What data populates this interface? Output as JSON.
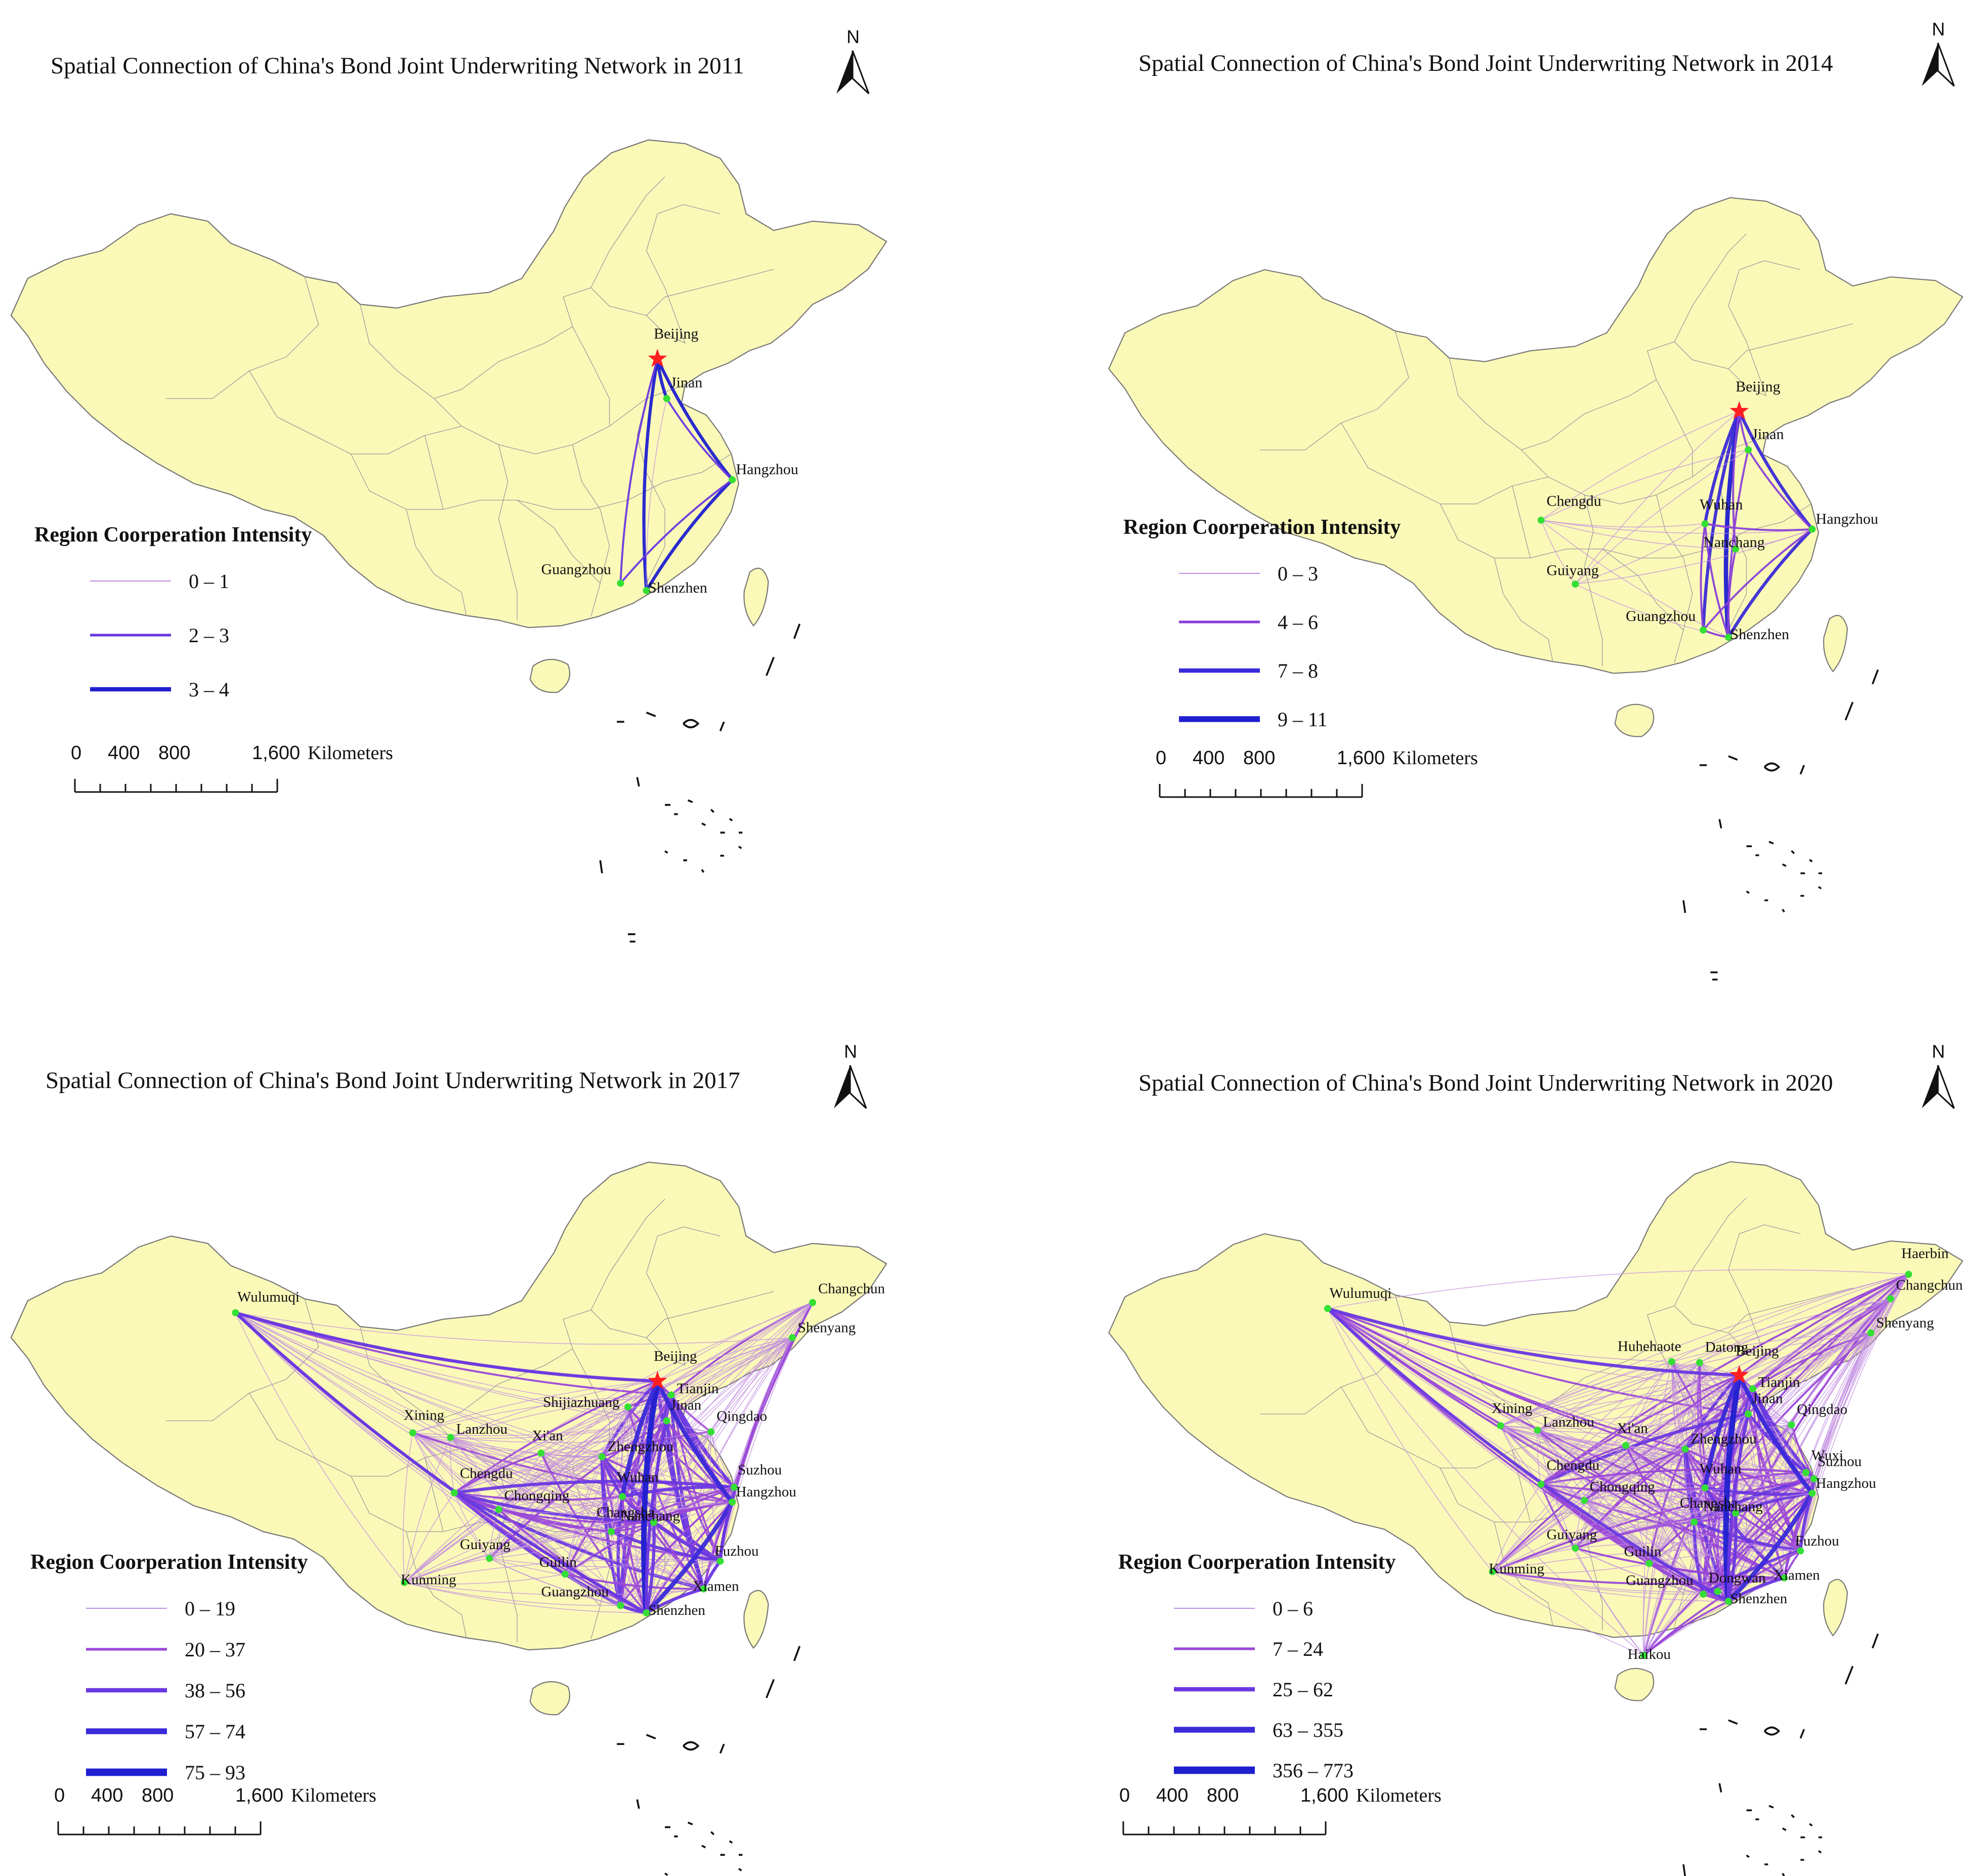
{
  "colors": {
    "land_fill": "#fbf9b8",
    "land_stroke": "#777777",
    "province_stroke": "#9a9a9a",
    "city_dot": "#33e033",
    "capital_star": "#ff1f1f",
    "background": "#ffffff"
  },
  "panels": [
    {
      "title": "Spatial Connection of  China's Bond Joint Underwriting Network in 2011",
      "north": "N",
      "legend_title": "Region Coorperation Intensity",
      "legend": [
        {
          "label": "0  –  1",
          "color": "#c08ce0",
          "weight": 1
        },
        {
          "label": "2  –  3",
          "color": "#6a38e0",
          "weight": 2
        },
        {
          "label": "3  –  4",
          "color": "#1f1fd0",
          "weight": 3
        }
      ],
      "scale": {
        "labels": [
          "0",
          "400",
          "800",
          "1,600"
        ],
        "unit": "Kilometers"
      },
      "cities": [
        "Beijing",
        "Jinan",
        "Hangzhou",
        "Guangzhou",
        "Shenzhen"
      ],
      "links": [
        [
          "Beijing",
          "Jinan",
          3
        ],
        [
          "Beijing",
          "Hangzhou",
          3
        ],
        [
          "Beijing",
          "Shenzhen",
          3
        ],
        [
          "Beijing",
          "Guangzhou",
          2
        ],
        [
          "Hangzhou",
          "Shenzhen",
          3
        ],
        [
          "Jinan",
          "Hangzhou",
          2
        ],
        [
          "Hangzhou",
          "Guangzhou",
          2
        ],
        [
          "Jinan",
          "Shenzhen",
          1
        ]
      ]
    },
    {
      "title": "Spatial Connection of  China's Bond Joint Underwriting Network in 2014",
      "north": "N",
      "legend_title": "Region Coorperation Intensity",
      "legend": [
        {
          "label": "0  –  3",
          "color": "#c08ce0",
          "weight": 1
        },
        {
          "label": "4  –  6",
          "color": "#8a40d8",
          "weight": 2
        },
        {
          "label": "7  –  8",
          "color": "#3a2ad8",
          "weight": 3
        },
        {
          "label": "9  –  11",
          "color": "#1f1fd0",
          "weight": 4
        }
      ],
      "scale": {
        "labels": [
          "0",
          "400",
          "800",
          "1,600"
        ],
        "unit": "Kilometers"
      },
      "cities": [
        "Beijing",
        "Jinan",
        "Chengdu",
        "Wuhan",
        "Hangzhou",
        "Nanchang",
        "Guiyang",
        "Guangzhou",
        "Shenzhen"
      ],
      "links": [
        [
          "Beijing",
          "Shenzhen",
          4
        ],
        [
          "Beijing",
          "Hangzhou",
          3
        ],
        [
          "Beijing",
          "Wuhan",
          3
        ],
        [
          "Beijing",
          "Guangzhou",
          3
        ],
        [
          "Beijing",
          "Jinan",
          2
        ],
        [
          "Beijing",
          "Chengdu",
          1
        ],
        [
          "Beijing",
          "Nanchang",
          2
        ],
        [
          "Beijing",
          "Guiyang",
          1
        ],
        [
          "Jinan",
          "Hangzhou",
          2
        ],
        [
          "Jinan",
          "Shenzhen",
          2
        ],
        [
          "Jinan",
          "Chengdu",
          1
        ],
        [
          "Jinan",
          "Guiyang",
          1
        ],
        [
          "Chengdu",
          "Wuhan",
          1
        ],
        [
          "Chengdu",
          "Hangzhou",
          1
        ],
        [
          "Chengdu",
          "Shenzhen",
          1
        ],
        [
          "Chengdu",
          "Guiyang",
          1
        ],
        [
          "Chengdu",
          "Nanchang",
          1
        ],
        [
          "Wuhan",
          "Hangzhou",
          2
        ],
        [
          "Wuhan",
          "Shenzhen",
          2
        ],
        [
          "Wuhan",
          "Guangzhou",
          2
        ],
        [
          "Hangzhou",
          "Shenzhen",
          3
        ],
        [
          "Hangzhou",
          "Guangzhou",
          2
        ],
        [
          "Nanchang",
          "Shenzhen",
          2
        ],
        [
          "Guiyang",
          "Shenzhen",
          1
        ],
        [
          "Guiyang",
          "Wuhan",
          1
        ],
        [
          "Guiyang",
          "Hangzhou",
          1
        ],
        [
          "Nanchang",
          "Hangzhou",
          1
        ],
        [
          "Guangzhou",
          "Shenzhen",
          2
        ]
      ]
    },
    {
      "title": "Spatial Connection of  China's Bond Joint Underwriting Network in 2017",
      "north": "N",
      "legend_title": "Region Coorperation Intensity",
      "legend": [
        {
          "label": "0  –  19",
          "color": "#c08ce0",
          "weight": 1
        },
        {
          "label": "20  –  37",
          "color": "#9a48d8",
          "weight": 2
        },
        {
          "label": "38  –  56",
          "color": "#6a38e0",
          "weight": 3
        },
        {
          "label": "57  –  74",
          "color": "#3a2ad8",
          "weight": 4
        },
        {
          "label": "75  –  93",
          "color": "#1f1fd0",
          "weight": 5
        }
      ],
      "scale": {
        "labels": [
          "0",
          "400",
          "800",
          "1,600"
        ],
        "unit": "Kilometers"
      },
      "cities": [
        "Wulumuqi",
        "Changchun",
        "Shenyang",
        "Beijing",
        "Tianjin",
        "Shijiazhuang",
        "Xining",
        "Lanzhou",
        "Xi'an",
        "Jinan",
        "Qingdao",
        "Zhengzhou",
        "Suzhou",
        "Chengdu",
        "Chongqing",
        "Wuhan",
        "Hangzhou",
        "Changsha",
        "Guiyang",
        "Nanchang",
        "Fuzhou",
        "Kunming",
        "Guilin",
        "Xiamen",
        "Guangzhou",
        "Shenzhen"
      ],
      "links": "dense"
    },
    {
      "title": "Spatial Connection of  China's Bond Joint Underwriting Network in 2020",
      "north": "N",
      "legend_title": "Region Coorperation Intensity",
      "legend": [
        {
          "label": "0  –  6",
          "color": "#c08ce0",
          "weight": 1
        },
        {
          "label": "7  –  24",
          "color": "#9a48d8",
          "weight": 2
        },
        {
          "label": "25  –  62",
          "color": "#6a38e0",
          "weight": 3
        },
        {
          "label": "63  –  355",
          "color": "#3a2ad8",
          "weight": 4
        },
        {
          "label": "356  –  773",
          "color": "#1f1fd0",
          "weight": 5
        }
      ],
      "scale": {
        "labels": [
          "0",
          "400",
          "800",
          "1,600"
        ],
        "unit": "Kilometers"
      },
      "cities": [
        "Haerbin",
        "Changchun",
        "Shenyang",
        "Wulumuqi",
        "Huhehaote",
        "Datong",
        "Beijing",
        "Tianjin",
        "Xining",
        "Jinan",
        "Qingdao",
        "Lanzhou",
        "Xi'an",
        "Zhengzhou",
        "Wuxi",
        "Suzhou",
        "Chengdu",
        "Wuhan",
        "Hangzhou",
        "Chongqing",
        "Changsha",
        "Nanchang",
        "Fuzhou",
        "Guiyang",
        "Kunming",
        "Guilin",
        "Xiamen",
        "Guangzhou",
        "Dongwan",
        "Shenzhen",
        "Haikou"
      ],
      "links": "dense"
    }
  ]
}
